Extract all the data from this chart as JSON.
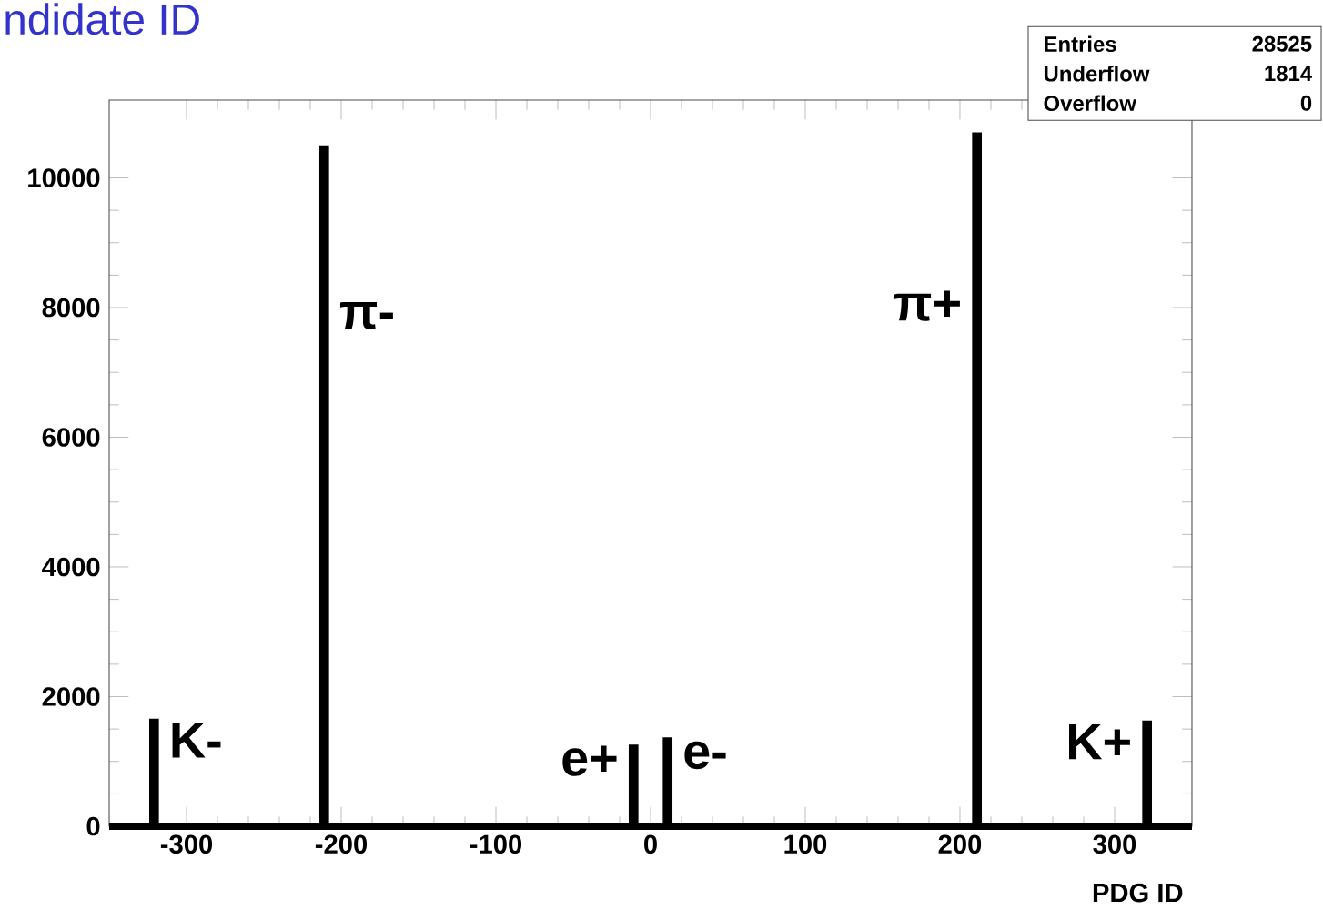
{
  "chart_data": {
    "type": "bar",
    "title": "ndidate ID",
    "xlabel": "PDG ID",
    "x": [
      -321,
      -211,
      -11,
      11,
      211,
      321
    ],
    "values": [
      1660,
      10500,
      1260,
      1370,
      10700,
      1630
    ],
    "color": "#000000",
    "xlim": [
      -350,
      350
    ],
    "ylim": [
      0,
      11200
    ],
    "xticks": [
      -300,
      -200,
      -100,
      0,
      100,
      200,
      300
    ],
    "yticks": [
      0,
      2000,
      4000,
      6000,
      8000,
      10000
    ],
    "grid": false,
    "annotations": [
      "Entries",
      "28525",
      "Underflow",
      "1814",
      "Overflow",
      "0",
      "K-",
      "π-",
      "e+",
      "e-",
      "π+",
      "K+"
    ]
  }
}
